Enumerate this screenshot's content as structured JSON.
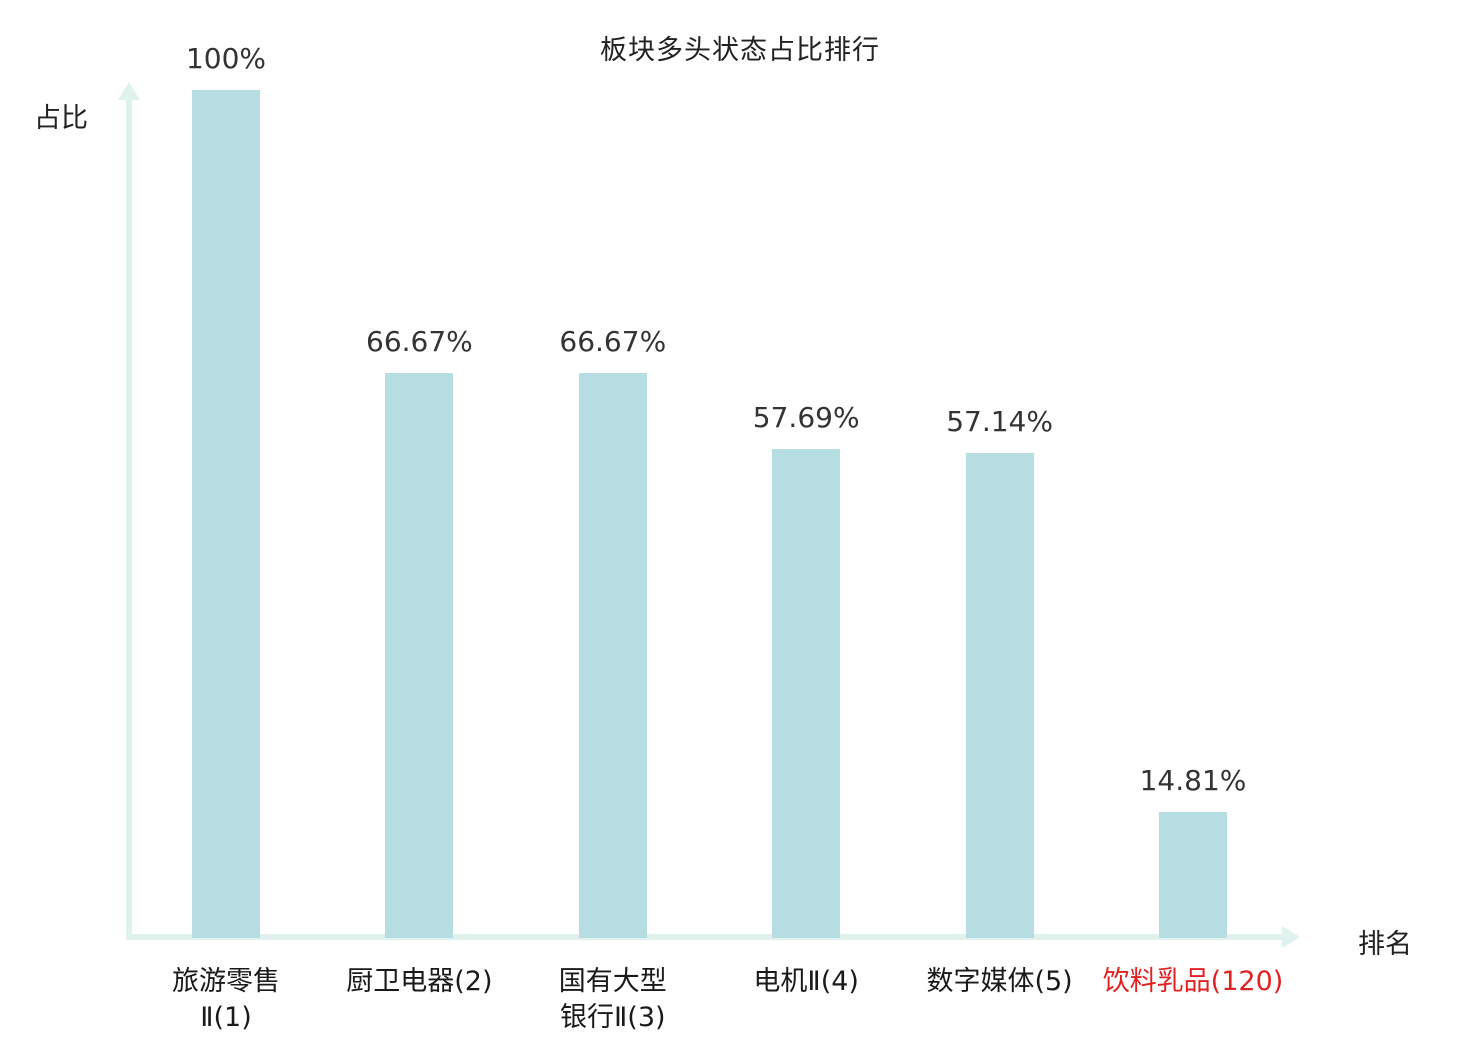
{
  "title": "板块多头状态占比排行",
  "axes": {
    "y_label": "占比",
    "x_label": "排名"
  },
  "colors": {
    "bar": "#b5dde2",
    "axis": "#e0f2ee",
    "value_label": "#333333",
    "category_label": "#1a1a1a",
    "highlight_label": "#e02222"
  },
  "chart_data": {
    "type": "bar",
    "title": "板块多头状态占比排行",
    "xlabel": "排名",
    "ylabel": "占比",
    "ylim": [
      0,
      100
    ],
    "grid": false,
    "legend": false,
    "categories": [
      "旅游零售Ⅱ(1)",
      "厨卫电器(2)",
      "国有大型银行Ⅱ(3)",
      "电机Ⅱ(4)",
      "数字媒体(5)",
      "饮料乳品(120)"
    ],
    "category_lines": [
      [
        "旅游零售",
        "Ⅱ(1)"
      ],
      [
        "厨卫电器(2)"
      ],
      [
        "国有大型",
        "银行Ⅱ(3)"
      ],
      [
        "电机Ⅱ(4)"
      ],
      [
        "数字媒体(5)"
      ],
      [
        "饮料乳品(120)"
      ]
    ],
    "values": [
      100,
      66.67,
      66.67,
      57.69,
      57.14,
      14.81
    ],
    "value_labels": [
      "100%",
      "66.67%",
      "66.67%",
      "57.69%",
      "57.14%",
      "14.81%"
    ],
    "highlight_index": 5
  }
}
